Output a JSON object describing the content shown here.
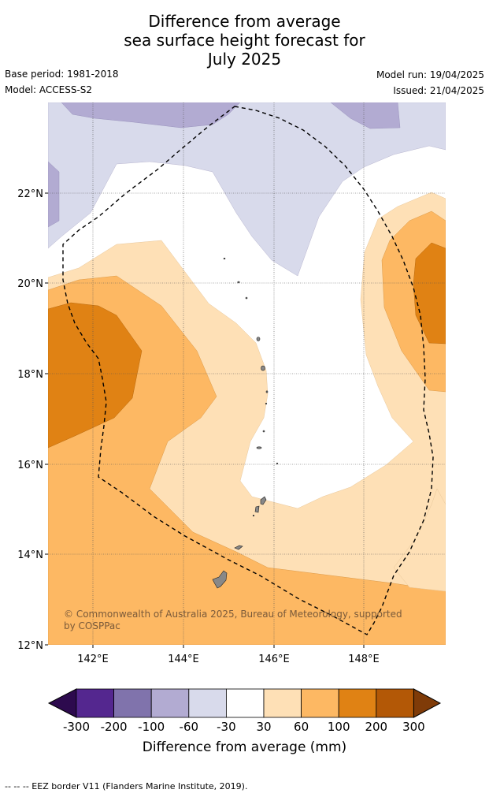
{
  "title": {
    "line1": "Difference from average",
    "line2": "sea surface height forecast for",
    "line3": "July 2025"
  },
  "meta": {
    "base_period": "Base period: 1981-2018",
    "model": "Model: ACCESS-S2",
    "model_run": "Model run: 19/04/2025",
    "issued": "Issued: 21/04/2025"
  },
  "map": {
    "lat_labels": [
      "22°N",
      "20°N",
      "18°N",
      "16°N",
      "14°N",
      "12°N"
    ],
    "lon_labels": [
      "142°E",
      "144°E",
      "146°E",
      "148°E"
    ],
    "credit": "© Commonwealth of Australia 2025, Bureau of Meteorology, supported by COSPPac"
  },
  "legend": {
    "tick_labels": [
      "-300",
      "-200",
      "-100",
      "-60",
      "-30",
      "30",
      "60",
      "100",
      "200",
      "300"
    ],
    "colors": [
      "#2d0a4e",
      "#54278f",
      "#8073ac",
      "#b2abd2",
      "#d8daeb",
      "#ffffff",
      "#fee0b6",
      "#fdb863",
      "#e08214",
      "#b35806",
      "#7f3b08"
    ],
    "label": "Difference from average (mm)"
  },
  "footer": "--  --  -- EEZ border V11 (Flanders Marine Institute, 2019)."
}
